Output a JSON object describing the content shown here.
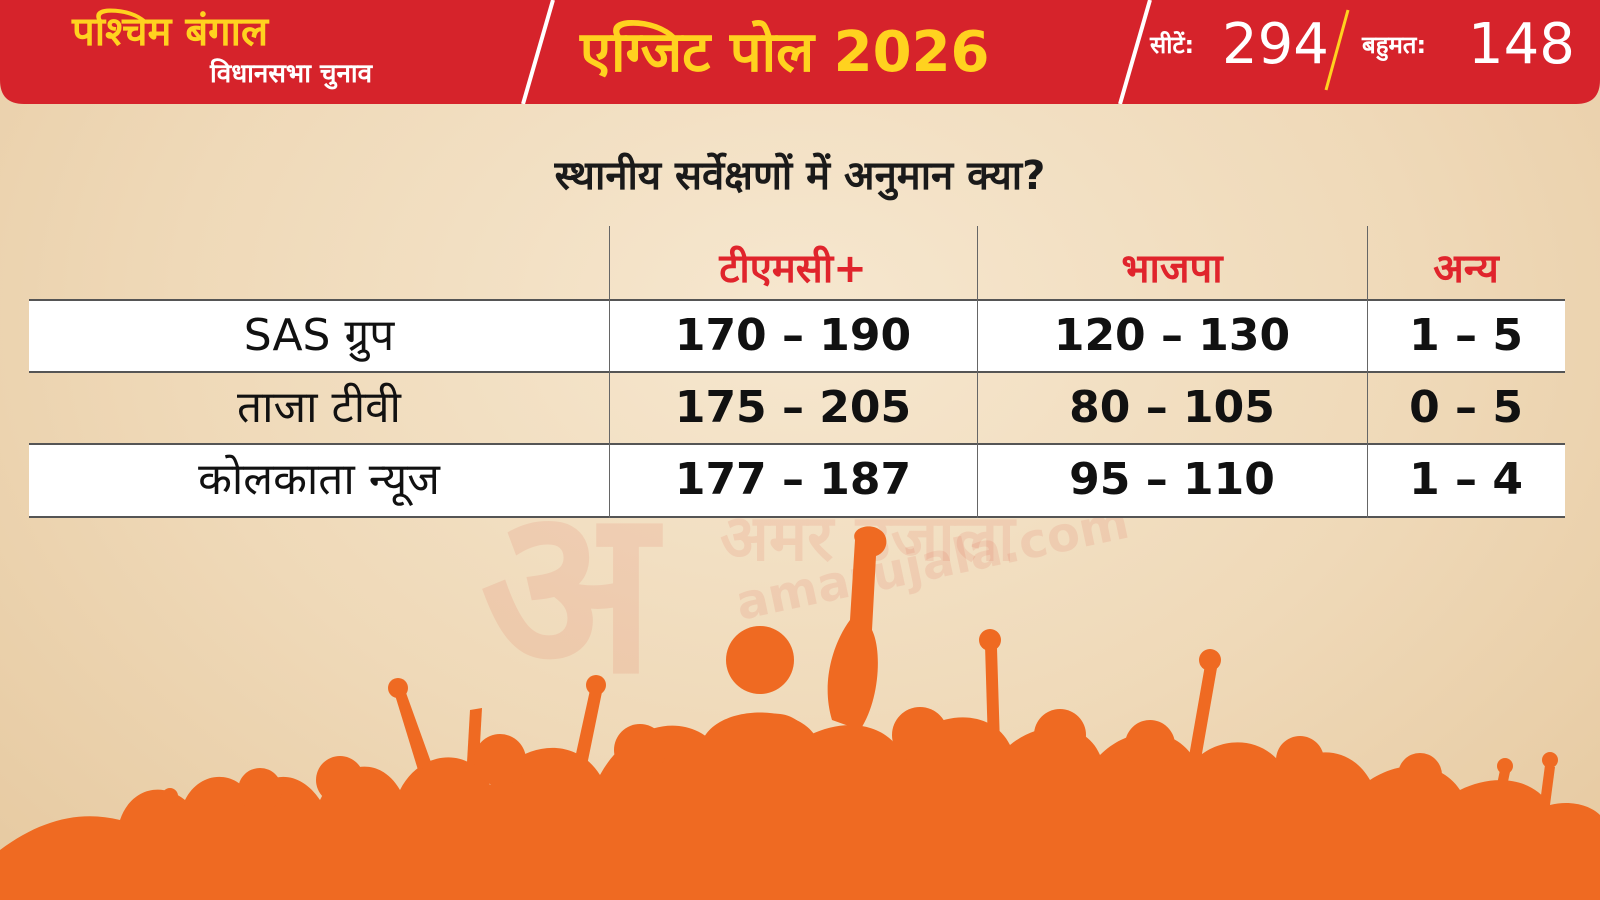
{
  "header": {
    "state_title": "पश्चिम बंगाल",
    "state_subtitle": "विधानसभा चुनाव",
    "poll_title": "एग्जिट पोल 2026",
    "seats_label": "सीटें:",
    "seats_value": "294",
    "majority_label": "बहुमत:",
    "majority_value": "148"
  },
  "question": "स्थानीय सर्वेक्षणों में अनुमान क्या?",
  "watermark": {
    "glyph": "अ",
    "brand": "अमर उजाला",
    "site": "amarujala.com"
  },
  "colors": {
    "banner_red": "#d6232b",
    "banner_yellow": "#ffd21f",
    "header_text_red": "#e0242c",
    "crowd_orange": "#ef6a22",
    "background_beige": "#f2dfc2"
  },
  "chart_data": {
    "type": "table",
    "title": "स्थानीय सर्वेक्षणों में अनुमान क्या?",
    "columns": [
      "",
      "टीएमसी+",
      "भाजपा",
      "अन्य"
    ],
    "rows": [
      {
        "name": "SAS ग्रुप",
        "cells": [
          "170 – 190",
          "120 – 130",
          "1 – 5"
        ]
      },
      {
        "name": "ताजा टीवी",
        "cells": [
          "175 – 205",
          "80 – 105",
          "0 – 5"
        ]
      },
      {
        "name": "कोलकाता न्यूज",
        "cells": [
          "177 – 187",
          "95 – 110",
          "1 – 4"
        ]
      }
    ]
  }
}
